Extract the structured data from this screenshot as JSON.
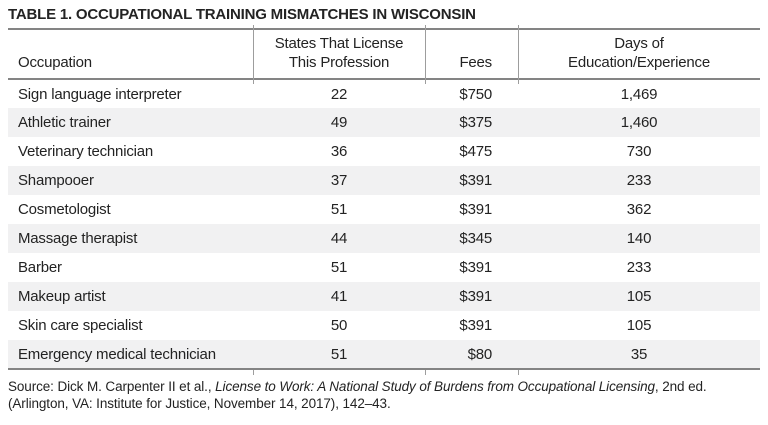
{
  "table": {
    "title": "TABLE 1. OCCUPATIONAL TRAINING MISMATCHES IN WISCONSIN",
    "columns": [
      {
        "label": "Occupation",
        "align": "left"
      },
      {
        "label": "States That License\nThis Profession",
        "align": "center"
      },
      {
        "label": "Fees",
        "align": "right"
      },
      {
        "label": "Days of\nEducation/Experience",
        "align": "center"
      }
    ],
    "rows": [
      [
        "Sign language interpreter",
        "22",
        "$750",
        "1,469"
      ],
      [
        "Athletic trainer",
        "49",
        "$375",
        "1,460"
      ],
      [
        "Veterinary technician",
        "36",
        "$475",
        "730"
      ],
      [
        "Shampooer",
        "37",
        "$391",
        "233"
      ],
      [
        "Cosmetologist",
        "51",
        "$391",
        "362"
      ],
      [
        "Massage therapist",
        "44",
        "$345",
        "140"
      ],
      [
        "Barber",
        "51",
        "$391",
        "233"
      ],
      [
        "Makeup artist",
        "41",
        "$391",
        "105"
      ],
      [
        "Skin care specialist",
        "50",
        "$391",
        "105"
      ],
      [
        "Emergency medical technician",
        "51",
        "$80",
        "35"
      ]
    ]
  },
  "source": {
    "line1_prefix": "Source: Dick M. Carpenter II et al., ",
    "line1_italic": "License to Work: A National Study of Burdens from Occupational Licensing",
    "line1_suffix": ", 2nd ed.",
    "line2": "(Arlington, VA: Institute for Justice, November 14, 2017), 142–43."
  },
  "colors": {
    "text": "#232323",
    "rule": "#848484",
    "separator": "#9d9d9d",
    "row_alt": "#f1f1f2",
    "background": "#ffffff"
  }
}
